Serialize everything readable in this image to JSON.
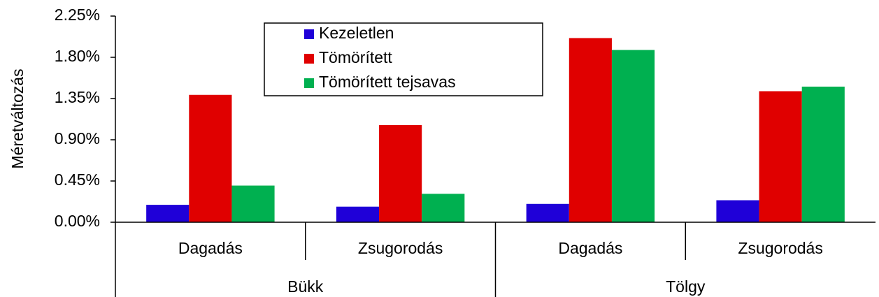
{
  "chart_data": {
    "type": "bar",
    "y_label": "Méretváltozás",
    "categories": [
      "Dagadás",
      "Zsugorodás",
      "Dagadás",
      "Zsugorodás"
    ],
    "groups": [
      "Bükk",
      "Tölgy"
    ],
    "series": [
      {
        "name": "Kezeletlen",
        "color": "#1f00d8",
        "values": [
          0.19,
          0.17,
          0.2,
          0.24
        ]
      },
      {
        "name": "Tömörített",
        "color": "#e00000",
        "values": [
          1.39,
          1.06,
          2.01,
          1.43
        ]
      },
      {
        "name": "Tömörített tejsavas",
        "color": "#00b050",
        "values": [
          0.4,
          0.31,
          1.88,
          1.48
        ]
      }
    ],
    "ylim": [
      0,
      2.25
    ],
    "yticks": [
      {
        "value": 0,
        "label": "0.00%"
      },
      {
        "value": 0.45,
        "label": "0.45%"
      },
      {
        "value": 0.9,
        "label": "0.90%"
      },
      {
        "value": 1.35,
        "label": "1.35%"
      },
      {
        "value": 1.8,
        "label": "1.80%"
      },
      {
        "value": 2.25,
        "label": "2.25%"
      }
    ],
    "grid": false,
    "legend": "top-left"
  }
}
